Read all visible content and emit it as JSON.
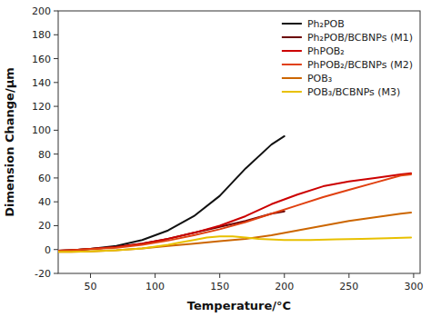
{
  "chart_data": {
    "type": "line",
    "xlabel": "Temperature/°C",
    "ylabel": "Dimension Change/μm",
    "xlim": [
      25,
      305
    ],
    "ylim": [
      -20,
      200
    ],
    "xticks": [
      50,
      100,
      150,
      200,
      250,
      300
    ],
    "yticks": [
      -20,
      0,
      20,
      40,
      60,
      80,
      100,
      120,
      140,
      160,
      180,
      200
    ],
    "grid": false,
    "legend": "upper right",
    "series": [
      {
        "name": "Ph₂POB",
        "color": "#111111",
        "x": [
          25,
          35,
          50,
          70,
          90,
          110,
          130,
          150,
          170,
          190,
          200
        ],
        "values": [
          -1,
          -0.5,
          0.5,
          3,
          8,
          16,
          28,
          45,
          68,
          88,
          95
        ]
      },
      {
        "name": "Ph₂POB/BCBNPs (M1)",
        "color": "#6b0000",
        "x": [
          25,
          35,
          50,
          70,
          90,
          110,
          130,
          150,
          170,
          190,
          200
        ],
        "values": [
          -1,
          -0.5,
          0.5,
          2,
          5,
          9,
          14,
          19,
          24,
          30,
          32
        ]
      },
      {
        "name": "PhPOB₂",
        "color": "#cc0000",
        "x": [
          25,
          35,
          50,
          70,
          90,
          110,
          130,
          150,
          170,
          190,
          210,
          230,
          250,
          270,
          290,
          298
        ],
        "values": [
          -1,
          -0.5,
          0.5,
          2,
          5,
          9,
          14,
          20,
          28,
          38,
          46,
          53,
          57,
          60,
          63,
          64
        ]
      },
      {
        "name": "PhPOB₂/BCBNPs (M2)",
        "color": "#e04010",
        "x": [
          25,
          35,
          50,
          70,
          90,
          110,
          130,
          150,
          170,
          190,
          210,
          230,
          250,
          270,
          290,
          298
        ],
        "values": [
          -1,
          -0.5,
          0.3,
          1.5,
          4,
          7.5,
          12,
          17,
          23,
          30,
          37,
          44,
          50,
          56,
          62,
          63
        ]
      },
      {
        "name": "POB₃",
        "color": "#cc6600",
        "x": [
          25,
          35,
          50,
          70,
          90,
          110,
          130,
          150,
          160,
          170,
          190,
          210,
          230,
          250,
          270,
          290,
          298
        ],
        "values": [
          -2,
          -2,
          -1.5,
          -0.5,
          1,
          3,
          5,
          7,
          8,
          9,
          12,
          16,
          20,
          24,
          27,
          30,
          31
        ]
      },
      {
        "name": "POB₃/BCBNPs (M3)",
        "color": "#e8c000",
        "x": [
          25,
          35,
          50,
          70,
          90,
          110,
          120,
          130,
          140,
          150,
          160,
          170,
          180,
          200,
          220,
          240,
          260,
          280,
          298
        ],
        "values": [
          -2,
          -2,
          -1.5,
          -0.5,
          1,
          4,
          6,
          8,
          10,
          11,
          11,
          10,
          9,
          8,
          8,
          8.5,
          9,
          9.5,
          10
        ]
      }
    ]
  }
}
